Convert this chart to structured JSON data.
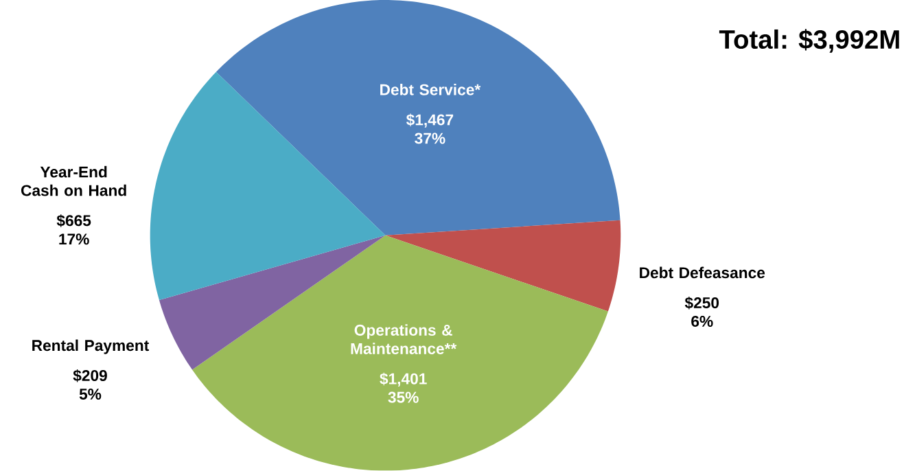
{
  "chart_data": {
    "type": "pie",
    "title": "Total: $3,992M",
    "categories": [
      "Debt Service*",
      "Debt Defeasance",
      "Operations & Maintenance**",
      "Rental Payment",
      "Year-End Cash on Hand"
    ],
    "values": [
      1467,
      250,
      1401,
      209,
      665
    ],
    "colors": [
      "#4f81bd",
      "#c0504d",
      "#9bbb59",
      "#8064a2",
      "#4bacc6"
    ],
    "value_labels": [
      "$1,467 37%",
      "$250 6%",
      "$1,401 35%",
      "$209 5%",
      "$665 17%"
    ]
  }
}
